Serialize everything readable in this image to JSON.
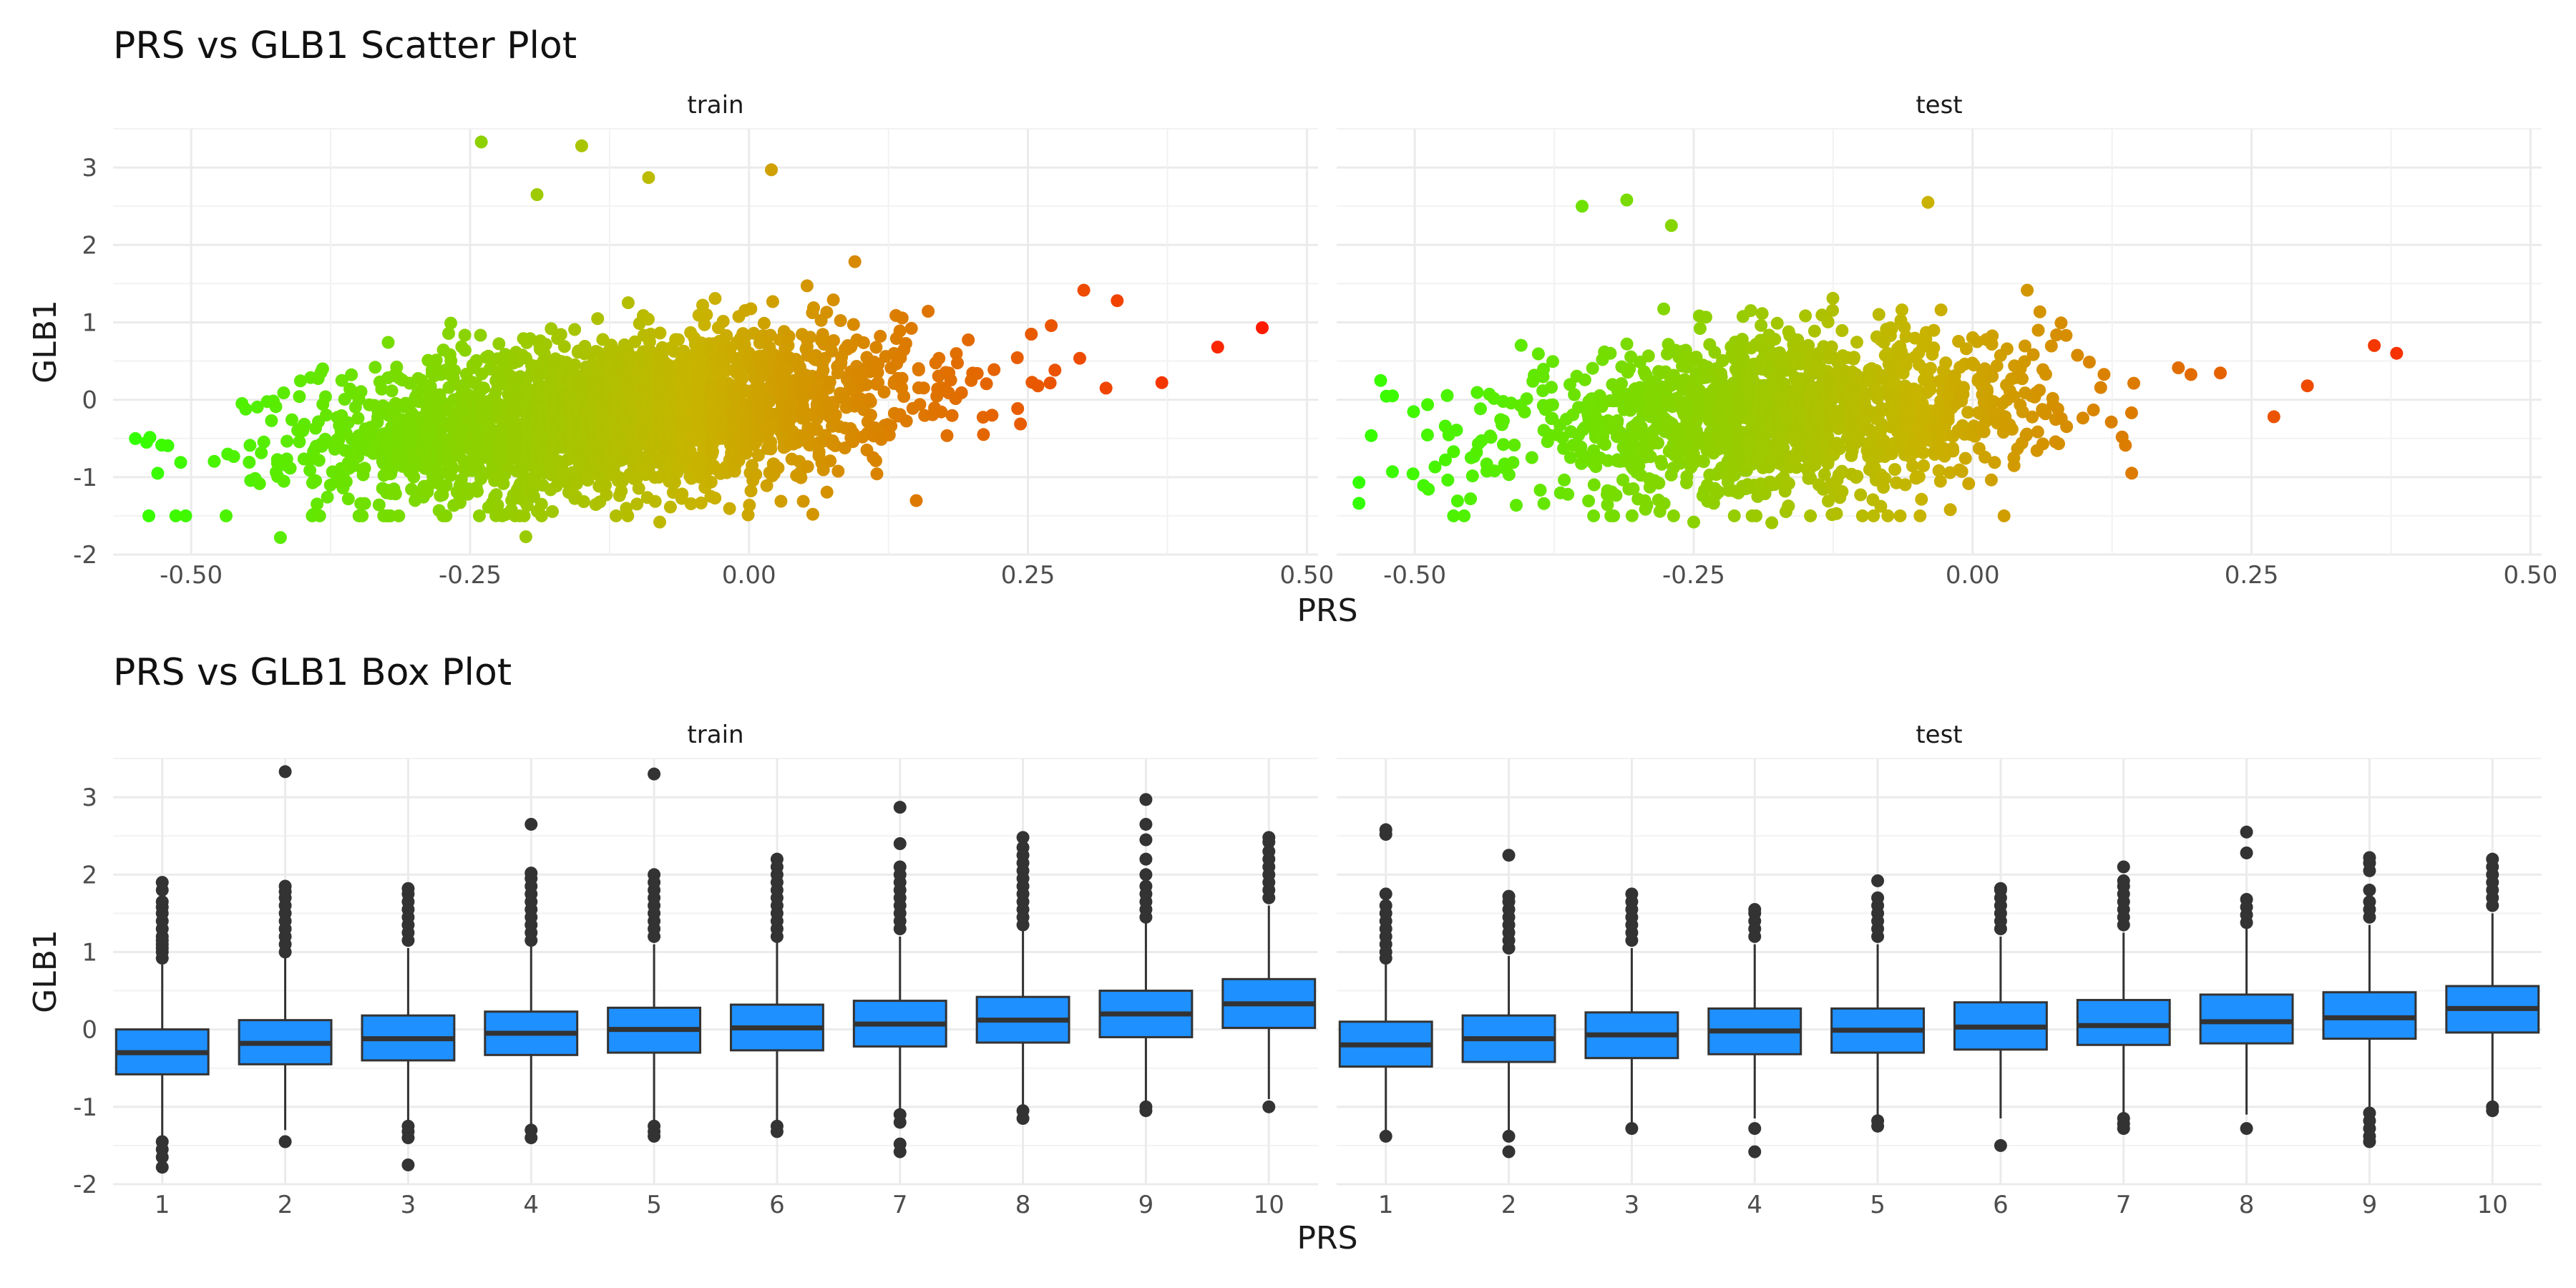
{
  "figure": {
    "scatter_title": "PRS vs GLB1 Scatter Plot",
    "box_title": "PRS vs GLB1 Box Plot"
  },
  "chart_data": [
    {
      "type": "scatter",
      "title": "PRS vs GLB1 Scatter Plot",
      "xlabel": "PRS",
      "ylabel": "GLB1",
      "facets": [
        "train",
        "test"
      ],
      "xlim": [
        -0.57,
        0.51
      ],
      "ylim": [
        -2.0,
        3.5
      ],
      "x_ticks": [
        -0.5,
        -0.25,
        0.0,
        0.25,
        0.5
      ],
      "x_tick_labels": [
        "-0.50",
        "-0.25",
        "0.00",
        "0.25",
        "0.50"
      ],
      "y_ticks": [
        -2,
        -1,
        0,
        1,
        2,
        3
      ],
      "y_tick_labels": [
        "-2",
        "-1",
        "0",
        "1",
        "2",
        "3"
      ],
      "color_scale": {
        "low": "#33ff00",
        "mid": "#c8b400",
        "high": "#ff1a00",
        "range": [
          -0.55,
          0.46
        ]
      },
      "grid": true,
      "panels": {
        "train": {
          "approx_trend": {
            "slope": 1.25,
            "intercept": -0.05,
            "resid_sd": 0.5
          },
          "x_center": -0.12,
          "x_sd": 0.13,
          "n": 2600,
          "notable_points": [
            {
              "x": 0.46,
              "y": 0.93
            },
            {
              "x": 0.42,
              "y": 0.68
            },
            {
              "x": 0.37,
              "y": 0.22
            },
            {
              "x": 0.33,
              "y": 1.28
            },
            {
              "x": 0.32,
              "y": 0.15
            },
            {
              "x": -0.24,
              "y": 3.33
            },
            {
              "x": -0.15,
              "y": 3.28
            },
            {
              "x": 0.02,
              "y": 2.97
            },
            {
              "x": -0.19,
              "y": 2.65
            },
            {
              "x": -0.09,
              "y": 2.87
            },
            {
              "x": -0.54,
              "y": -0.55
            },
            {
              "x": -0.53,
              "y": -0.95
            },
            {
              "x": -0.42,
              "y": -1.78
            },
            {
              "x": -0.2,
              "y": -1.77
            },
            {
              "x": -0.08,
              "y": -1.58
            }
          ]
        },
        "test": {
          "approx_trend": {
            "slope": 1.0,
            "intercept": -0.05,
            "resid_sd": 0.5
          },
          "x_center": -0.17,
          "x_sd": 0.12,
          "n": 1500,
          "notable_points": [
            {
              "x": 0.38,
              "y": 0.6
            },
            {
              "x": 0.36,
              "y": 0.7
            },
            {
              "x": 0.3,
              "y": 0.18
            },
            {
              "x": 0.27,
              "y": -0.22
            },
            {
              "x": -0.31,
              "y": 2.58
            },
            {
              "x": -0.35,
              "y": 2.5
            },
            {
              "x": -0.27,
              "y": 2.25
            },
            {
              "x": -0.04,
              "y": 2.55
            },
            {
              "x": -0.52,
              "y": 0.05
            },
            {
              "x": -0.52,
              "y": -0.93
            },
            {
              "x": -0.45,
              "y": -1.28
            },
            {
              "x": -0.25,
              "y": -1.58
            },
            {
              "x": -0.18,
              "y": -1.59
            },
            {
              "x": -0.02,
              "y": -1.42
            }
          ]
        }
      }
    },
    {
      "type": "box",
      "title": "PRS vs GLB1 Box Plot",
      "xlabel": "PRS",
      "ylabel": "GLB1",
      "facets": [
        "train",
        "test"
      ],
      "categories": [
        "1",
        "2",
        "3",
        "4",
        "5",
        "6",
        "7",
        "8",
        "9",
        "10"
      ],
      "ylim": [
        -2.0,
        3.5
      ],
      "y_ticks": [
        -2,
        -1,
        0,
        1,
        2,
        3
      ],
      "y_tick_labels": [
        "-2",
        "-1",
        "0",
        "1",
        "2",
        "3"
      ],
      "box_color": "#1e90ff",
      "grid": true,
      "panels": {
        "train": [
          {
            "q1": -0.58,
            "median": -0.3,
            "q3": 0.0,
            "lower": -1.4,
            "upper": 0.85,
            "outliers": [
              -1.45,
              -1.55,
              -1.65,
              -1.78,
              0.92,
              1.0,
              1.05,
              1.1,
              1.15,
              1.2,
              1.3,
              1.4,
              1.5,
              1.58,
              1.65,
              1.8,
              1.9
            ]
          },
          {
            "q1": -0.45,
            "median": -0.18,
            "q3": 0.12,
            "lower": -1.3,
            "upper": 0.95,
            "outliers": [
              -1.45,
              1.0,
              1.1,
              1.2,
              1.3,
              1.4,
              1.5,
              1.6,
              1.7,
              1.78,
              1.85,
              3.33
            ]
          },
          {
            "q1": -0.4,
            "median": -0.12,
            "q3": 0.18,
            "lower": -1.2,
            "upper": 1.05,
            "outliers": [
              -1.25,
              -1.32,
              -1.4,
              -1.75,
              1.15,
              1.25,
              1.35,
              1.45,
              1.55,
              1.65,
              1.75,
              1.82
            ]
          },
          {
            "q1": -0.33,
            "median": -0.05,
            "q3": 0.23,
            "lower": -1.25,
            "upper": 1.08,
            "outliers": [
              -1.3,
              -1.4,
              1.15,
              1.25,
              1.35,
              1.45,
              1.55,
              1.65,
              1.75,
              1.85,
              1.95,
              2.02,
              2.65
            ]
          },
          {
            "q1": -0.3,
            "median": 0.0,
            "q3": 0.28,
            "lower": -1.2,
            "upper": 1.1,
            "outliers": [
              -1.25,
              -1.32,
              -1.38,
              1.2,
              1.3,
              1.4,
              1.5,
              1.6,
              1.7,
              1.8,
              1.9,
              2.0,
              3.3
            ]
          },
          {
            "q1": -0.27,
            "median": 0.02,
            "q3": 0.32,
            "lower": -1.2,
            "upper": 1.15,
            "outliers": [
              -1.25,
              -1.32,
              1.2,
              1.3,
              1.4,
              1.5,
              1.6,
              1.7,
              1.8,
              1.9,
              2.0,
              2.1,
              2.2
            ]
          },
          {
            "q1": -0.22,
            "median": 0.07,
            "q3": 0.37,
            "lower": -1.05,
            "upper": 1.2,
            "outliers": [
              -1.1,
              -1.2,
              -1.48,
              -1.58,
              1.3,
              1.4,
              1.5,
              1.6,
              1.7,
              1.8,
              1.9,
              2.0,
              2.1,
              2.4,
              2.87
            ]
          },
          {
            "q1": -0.17,
            "median": 0.12,
            "q3": 0.42,
            "lower": -1.0,
            "upper": 1.3,
            "outliers": [
              -1.05,
              -1.15,
              1.35,
              1.45,
              1.55,
              1.65,
              1.75,
              1.85,
              1.95,
              2.05,
              2.15,
              2.25,
              2.35,
              2.48
            ]
          },
          {
            "q1": -0.1,
            "median": 0.2,
            "q3": 0.5,
            "lower": -0.95,
            "upper": 1.4,
            "outliers": [
              -1.0,
              -1.05,
              1.45,
              1.55,
              1.65,
              1.75,
              1.85,
              2.0,
              2.2,
              2.45,
              2.65,
              2.97
            ]
          },
          {
            "q1": 0.02,
            "median": 0.33,
            "q3": 0.65,
            "lower": -0.9,
            "upper": 1.6,
            "outliers": [
              -1.0,
              1.7,
              1.8,
              1.9,
              2.0,
              2.1,
              2.2,
              2.3,
              2.42,
              2.48
            ]
          }
        ],
        "test": [
          {
            "q1": -0.48,
            "median": -0.2,
            "q3": 0.1,
            "lower": -1.3,
            "upper": 0.85,
            "outliers": [
              -1.38,
              0.92,
              1.0,
              1.1,
              1.2,
              1.3,
              1.4,
              1.5,
              1.6,
              1.75,
              2.52,
              2.58
            ]
          },
          {
            "q1": -0.42,
            "median": -0.12,
            "q3": 0.18,
            "lower": -1.3,
            "upper": 0.95,
            "outliers": [
              -1.38,
              -1.58,
              1.05,
              1.15,
              1.25,
              1.35,
              1.45,
              1.55,
              1.65,
              1.72,
              2.25
            ]
          },
          {
            "q1": -0.37,
            "median": -0.07,
            "q3": 0.22,
            "lower": -1.2,
            "upper": 1.05,
            "outliers": [
              -1.28,
              1.15,
              1.25,
              1.35,
              1.45,
              1.55,
              1.65,
              1.75
            ]
          },
          {
            "q1": -0.32,
            "median": -0.02,
            "q3": 0.27,
            "lower": -1.15,
            "upper": 1.1,
            "outliers": [
              -1.28,
              -1.58,
              1.2,
              1.3,
              1.4,
              1.5,
              1.55
            ]
          },
          {
            "q1": -0.3,
            "median": -0.01,
            "q3": 0.27,
            "lower": -1.1,
            "upper": 1.1,
            "outliers": [
              -1.18,
              -1.25,
              1.2,
              1.3,
              1.4,
              1.5,
              1.6,
              1.7,
              1.92
            ]
          },
          {
            "q1": -0.26,
            "median": 0.03,
            "q3": 0.35,
            "lower": -1.15,
            "upper": 1.2,
            "outliers": [
              -1.5,
              1.3,
              1.4,
              1.5,
              1.6,
              1.7,
              1.8,
              1.82
            ]
          },
          {
            "q1": -0.2,
            "median": 0.05,
            "q3": 0.38,
            "lower": -1.1,
            "upper": 1.25,
            "outliers": [
              -1.15,
              -1.22,
              -1.28,
              1.35,
              1.45,
              1.55,
              1.65,
              1.75,
              1.85,
              1.92,
              2.1
            ]
          },
          {
            "q1": -0.18,
            "median": 0.1,
            "q3": 0.45,
            "lower": -1.1,
            "upper": 1.3,
            "outliers": [
              -1.28,
              1.38,
              1.48,
              1.58,
              1.68,
              2.28,
              2.55
            ]
          },
          {
            "q1": -0.12,
            "median": 0.15,
            "q3": 0.48,
            "lower": -1.0,
            "upper": 1.35,
            "outliers": [
              -1.08,
              -1.18,
              -1.28,
              -1.38,
              -1.45,
              1.45,
              1.55,
              1.65,
              1.8,
              2.05,
              2.15,
              2.22
            ]
          },
          {
            "q1": -0.04,
            "median": 0.27,
            "q3": 0.56,
            "lower": -0.95,
            "upper": 1.5,
            "outliers": [
              -1.0,
              -1.05,
              1.6,
              1.7,
              1.8,
              1.9,
              2.0,
              2.1,
              2.2
            ]
          }
        ]
      }
    }
  ]
}
